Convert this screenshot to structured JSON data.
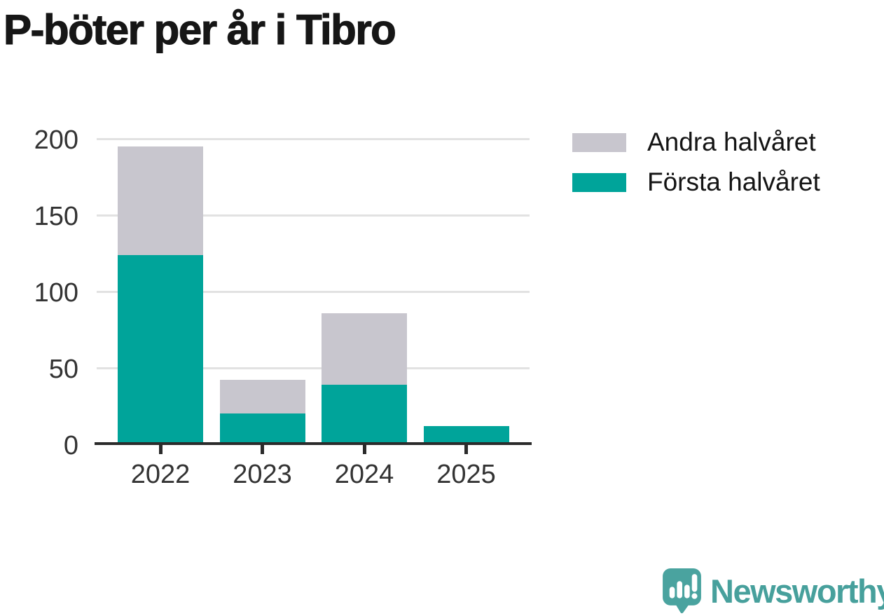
{
  "chart_data": {
    "type": "bar",
    "stacked": true,
    "title": "P-böter per år i Tibro",
    "categories": [
      "2022",
      "2023",
      "2024",
      "2025"
    ],
    "series": [
      {
        "name": "Första halvåret",
        "color": "#00a49a",
        "values": [
          124,
          20,
          39,
          12
        ]
      },
      {
        "name": "Andra halvåret",
        "color": "#c8c6ce",
        "values": [
          71,
          22,
          47,
          0
        ]
      }
    ],
    "stacked_totals": [
      195,
      42,
      86,
      12
    ],
    "xlabel": "",
    "ylabel": "",
    "ylim": [
      0,
      200
    ],
    "yticks": [
      0,
      50,
      100,
      150,
      200
    ],
    "grid": "horizontal gridlines on",
    "gridline_color": "#e2e2e2",
    "axis_color": "#2b2b2b",
    "tick_label_color": "#333333",
    "legend_position": "top-right"
  },
  "legend": {
    "items": [
      {
        "label": "Andra halvåret",
        "color": "#c8c6ce"
      },
      {
        "label": "Första halvåret",
        "color": "#00a49a"
      }
    ]
  },
  "branding": {
    "logo_text": "Newsworthy",
    "logo_text_color": "#47a09c",
    "logo_mark_color": "#4aa39f"
  }
}
